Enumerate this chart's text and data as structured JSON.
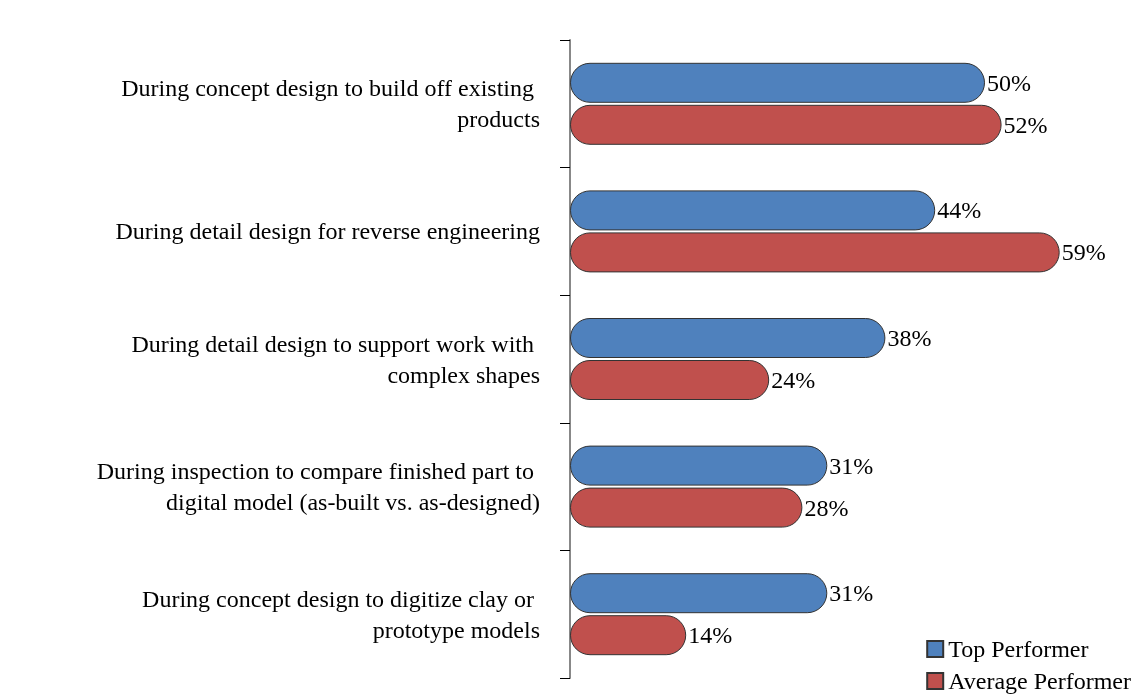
{
  "chart_data": {
    "type": "bar",
    "orientation": "horizontal",
    "categories": [
      "During concept design to build off existing products",
      "During detail design for reverse engineering",
      "During detail design to support work with complex shapes",
      "During inspection to compare finished part to digital model (as-built vs. as-designed)",
      "During concept design to digitize clay or prototype models"
    ],
    "series": [
      {
        "name": "Top Performer",
        "color": "#4f81bd",
        "values": [
          50,
          44,
          38,
          31,
          31
        ],
        "value_labels": [
          "50%",
          "44%",
          "38%",
          "31%",
          "31%"
        ]
      },
      {
        "name": "Average Performer",
        "color": "#c0504d",
        "values": [
          52,
          59,
          24,
          28,
          14
        ],
        "value_labels": [
          "52%",
          "59%",
          "24%",
          "28%",
          "14%"
        ]
      }
    ],
    "legend": "bottom right"
  }
}
